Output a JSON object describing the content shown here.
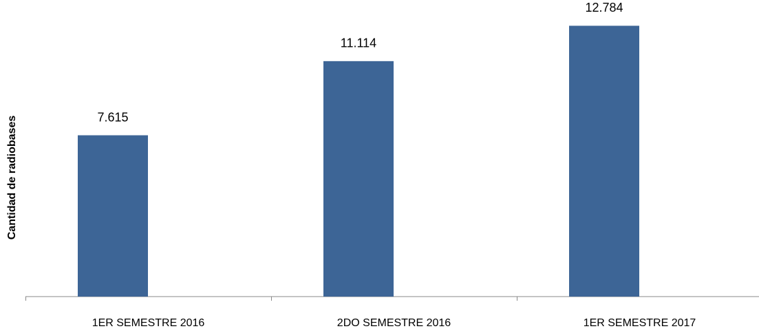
{
  "chart_data": {
    "type": "bar",
    "y_axis_label": "Cantidad de radiobases",
    "categories": [
      "1ER SEMESTRE 2016",
      "2DO SEMESTRE 2016",
      "1ER SEMESTRE 2017"
    ],
    "values": [
      7615,
      11114,
      12784
    ],
    "value_labels": [
      "7.615",
      "11.114",
      "12.784"
    ],
    "color": "#3d6596",
    "ylim": [
      0,
      14000
    ]
  }
}
